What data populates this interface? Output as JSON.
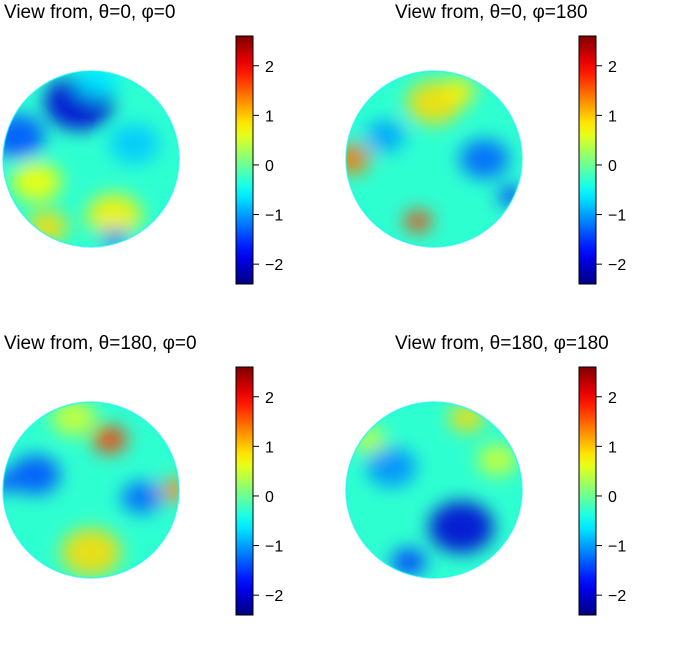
{
  "chart_data": [
    {
      "type": "heatmap",
      "title": "View from, θ=0, φ=0",
      "colorbar": {
        "range": [
          -2.4,
          2.6
        ],
        "ticks": [
          -2,
          -1,
          0,
          1,
          2
        ],
        "tick_labels": [
          "−2",
          "−1",
          "0",
          "1",
          "2"
        ],
        "colormap": "jet"
      },
      "blobs": [
        {
          "lon": -10,
          "lat": 40,
          "value": -2.0,
          "spread": 28
        },
        {
          "lon": -60,
          "lat": 15,
          "value": -1.4,
          "spread": 22
        },
        {
          "lon": 30,
          "lat": 10,
          "value": -0.8,
          "spread": 20
        },
        {
          "lon": -40,
          "lat": -15,
          "value": 0.7,
          "spread": 20
        },
        {
          "lon": 20,
          "lat": -40,
          "value": 0.8,
          "spread": 22
        },
        {
          "lon": -50,
          "lat": -50,
          "value": 0.9,
          "spread": 16
        },
        {
          "lon": 40,
          "lat": -65,
          "value": -1.3,
          "spread": 10
        },
        {
          "lon": 10,
          "lat": 65,
          "value": -0.6,
          "spread": 18
        }
      ]
    },
    {
      "type": "heatmap",
      "title": "View from, θ=0, φ=180",
      "colorbar": {
        "range": [
          -2.4,
          2.6
        ],
        "ticks": [
          -2,
          -1,
          0,
          1,
          2
        ],
        "tick_labels": [
          "−2",
          "−1",
          "0",
          "1",
          "2"
        ],
        "colormap": "jet"
      },
      "blobs": [
        {
          "lon": 0,
          "lat": 40,
          "value": 0.9,
          "spread": 22
        },
        {
          "lon": -70,
          "lat": 0,
          "value": 1.4,
          "spread": 15
        },
        {
          "lon": -15,
          "lat": -45,
          "value": 1.7,
          "spread": 11
        },
        {
          "lon": 35,
          "lat": 0,
          "value": -1.3,
          "spread": 20
        },
        {
          "lon": -35,
          "lat": 15,
          "value": -1.0,
          "spread": 16
        },
        {
          "lon": 75,
          "lat": -25,
          "value": -1.6,
          "spread": 10
        },
        {
          "lon": 25,
          "lat": 50,
          "value": 0.8,
          "spread": 14
        }
      ]
    },
    {
      "type": "heatmap",
      "title": "View from, θ=180, φ=0",
      "colorbar": {
        "range": [
          -2.4,
          2.6
        ],
        "ticks": [
          -2,
          -1,
          0,
          1,
          2
        ],
        "tick_labels": [
          "−2",
          "−1",
          "0",
          "1",
          "2"
        ],
        "colormap": "jet"
      },
      "blobs": [
        {
          "lon": 15,
          "lat": 35,
          "value": 1.7,
          "spread": 14
        },
        {
          "lon": 75,
          "lat": 0,
          "value": 1.3,
          "spread": 12
        },
        {
          "lon": -40,
          "lat": 10,
          "value": -1.4,
          "spread": 20
        },
        {
          "lon": 35,
          "lat": -5,
          "value": -1.3,
          "spread": 16
        },
        {
          "lon": -80,
          "lat": 5,
          "value": -1.5,
          "spread": 10
        },
        {
          "lon": 0,
          "lat": -45,
          "value": 0.9,
          "spread": 24
        },
        {
          "lon": -20,
          "lat": 55,
          "value": 0.5,
          "spread": 18
        }
      ]
    },
    {
      "type": "heatmap",
      "title": "View from, θ=180, φ=180",
      "colorbar": {
        "range": [
          -2.4,
          2.6
        ],
        "ticks": [
          -2,
          -1,
          0,
          1,
          2
        ],
        "tick_labels": [
          "−2",
          "−1",
          "0",
          "1",
          "2"
        ],
        "colormap": "jet"
      },
      "blobs": [
        {
          "lon": 20,
          "lat": -25,
          "value": -2.0,
          "spread": 26
        },
        {
          "lon": -30,
          "lat": 15,
          "value": -1.1,
          "spread": 20
        },
        {
          "lon": 40,
          "lat": 55,
          "value": 0.9,
          "spread": 14
        },
        {
          "lon": -30,
          "lat": -55,
          "value": -1.5,
          "spread": 14
        },
        {
          "lon": 50,
          "lat": 20,
          "value": 0.5,
          "spread": 16
        },
        {
          "lon": -65,
          "lat": 35,
          "value": 0.4,
          "spread": 14
        }
      ]
    }
  ]
}
